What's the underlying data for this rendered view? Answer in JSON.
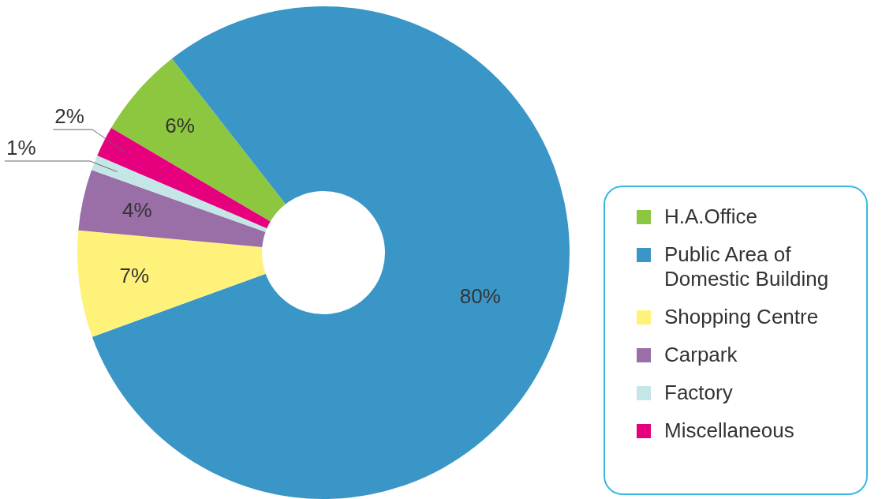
{
  "chart_data": {
    "type": "donut",
    "categories": [
      "H.A.Office",
      "Public Area of Domestic Building",
      "Shopping Centre",
      "Carpark",
      "Factory",
      "Miscellaneous"
    ],
    "values": [
      6,
      80,
      7,
      4,
      1,
      2
    ],
    "colors": [
      "#8dc63f",
      "#3a96c6",
      "#fff27a",
      "#9a6ea6",
      "#c4e6e6",
      "#e6007e"
    ],
    "value_labels": [
      "6%",
      "80%",
      "7%",
      "4%",
      "1%",
      "2%"
    ],
    "legend": "right"
  }
}
